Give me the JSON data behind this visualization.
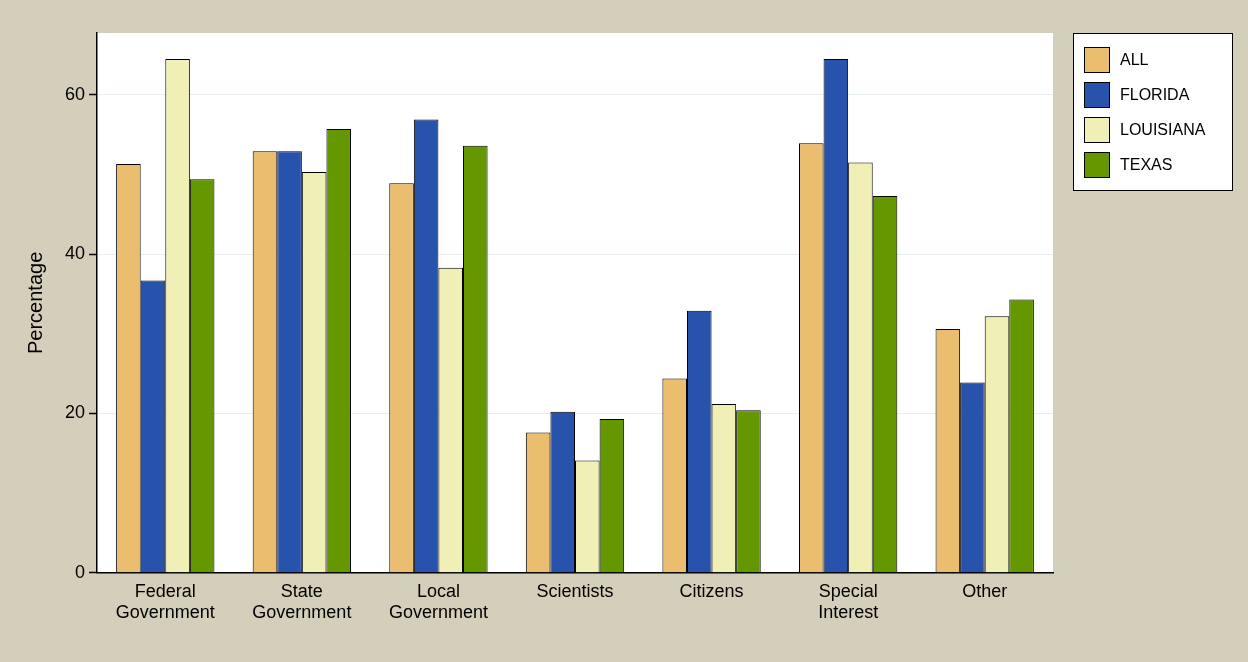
{
  "chart_data": {
    "type": "bar",
    "ylabel": "Percentage",
    "categories": [
      "Federal Government",
      "State Government",
      "Local Government",
      "Scientists",
      "Citizens",
      "Special Interest",
      "Other"
    ],
    "series": [
      {
        "name": "ALL",
        "color": "#ebbd6e",
        "values": [
          51.3,
          52.9,
          48.9,
          17.6,
          24.4,
          53.9,
          30.6
        ]
      },
      {
        "name": "FLORIDA",
        "color": "#2853ad",
        "values": [
          36.7,
          52.9,
          56.9,
          20.2,
          32.9,
          64.5,
          23.9
        ]
      },
      {
        "name": "LOUISIANA",
        "color": "#f0efb6",
        "values": [
          64.5,
          50.3,
          38.3,
          14.1,
          21.2,
          51.5,
          32.2
        ]
      },
      {
        "name": "TEXAS",
        "color": "#659800",
        "values": [
          49.4,
          55.7,
          53.6,
          19.3,
          20.4,
          47.3,
          34.3
        ]
      }
    ],
    "ylim": [
      0,
      67.75
    ],
    "yticks": [
      0,
      20,
      40,
      60
    ],
    "grid": "y",
    "legend": "top right"
  }
}
